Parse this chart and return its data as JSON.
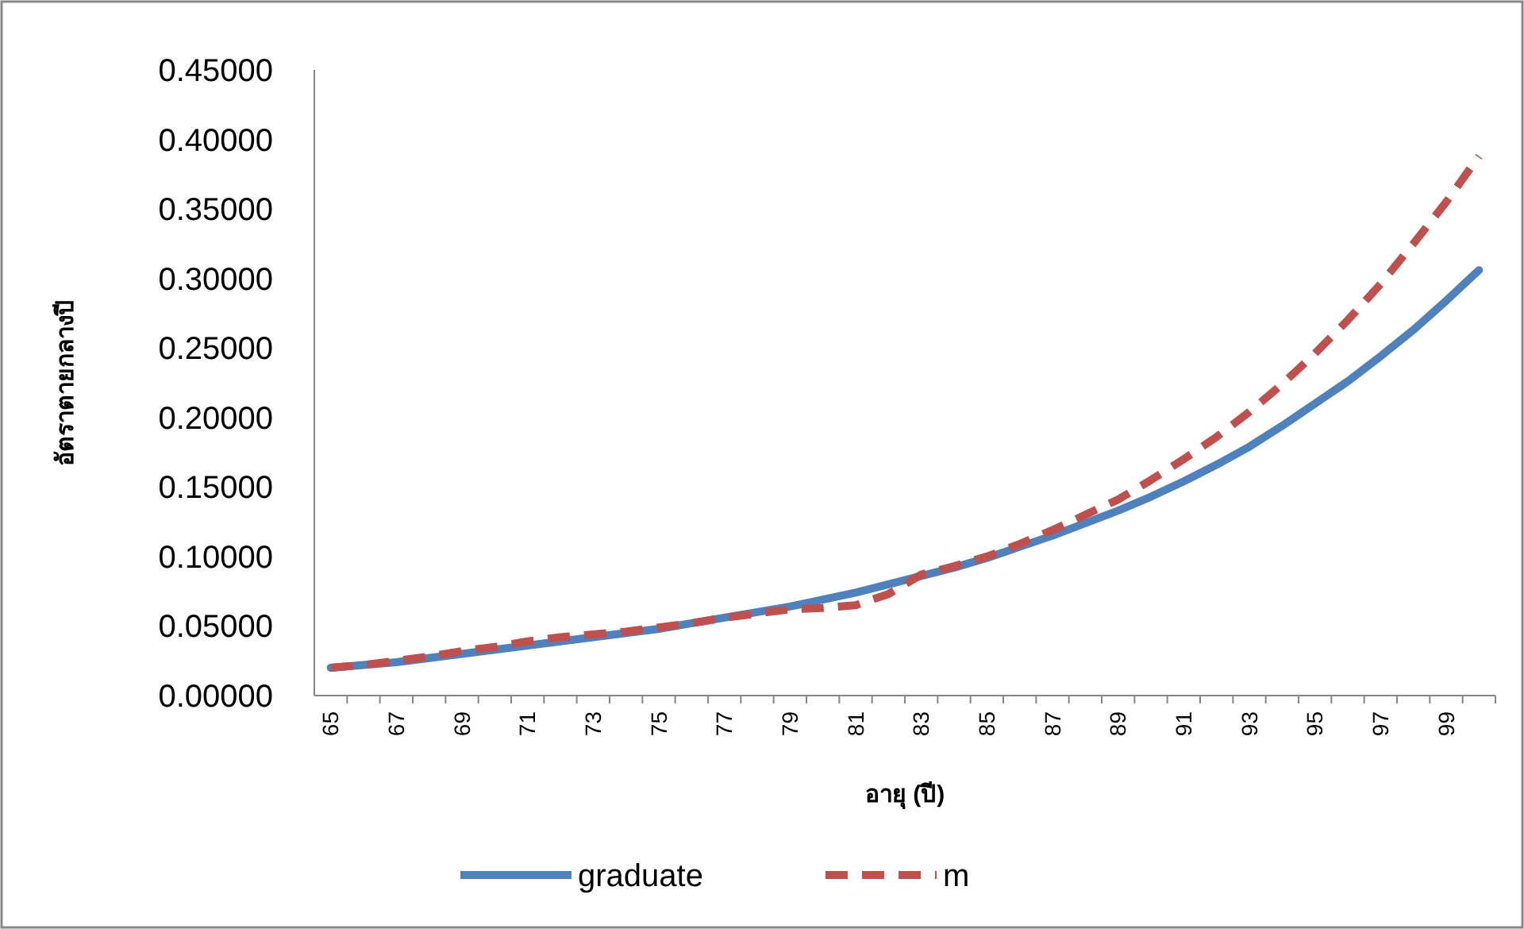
{
  "chart_data": {
    "type": "line",
    "xlabel": "อายุ (ปี)",
    "ylabel": "อัตราตายกลางปี",
    "categories": [
      "65",
      null,
      "67",
      null,
      "69",
      null,
      "71",
      null,
      "73",
      null,
      "75",
      null,
      "77",
      null,
      "79",
      null,
      "81",
      null,
      "83",
      null,
      "85",
      null,
      "87",
      null,
      "89",
      null,
      "91",
      null,
      "93",
      null,
      "95",
      null,
      "97",
      null,
      "99",
      null
    ],
    "series": [
      {
        "name": "graduate",
        "color": "#4f81bd",
        "line_style": "solid",
        "values": [
          0.02,
          0.022,
          0.024,
          0.027,
          0.03,
          0.033,
          0.036,
          0.039,
          0.042,
          0.045,
          0.048,
          0.052,
          0.056,
          0.06,
          0.064,
          0.069,
          0.074,
          0.08,
          0.086,
          0.092,
          0.099,
          0.107,
          0.115,
          0.124,
          0.133,
          0.143,
          0.154,
          0.166,
          0.179,
          0.194,
          0.21,
          0.226,
          0.244,
          0.263,
          0.284,
          0.306
        ]
      },
      {
        "name": "m",
        "color": "#c0504d",
        "line_style": "dashed",
        "values": [
          0.02,
          0.022,
          0.025,
          0.028,
          0.032,
          0.035,
          0.039,
          0.042,
          0.044,
          0.046,
          0.049,
          0.052,
          0.056,
          0.059,
          0.062,
          0.063,
          0.065,
          0.073,
          0.087,
          0.093,
          0.1,
          0.109,
          0.119,
          0.13,
          0.141,
          0.155,
          0.17,
          0.186,
          0.204,
          0.224,
          0.246,
          0.27,
          0.296,
          0.325,
          0.355,
          0.388
        ]
      }
    ],
    "ylim": [
      0,
      0.45
    ],
    "yticks": [
      {
        "value": 0,
        "label": "0.00000"
      },
      {
        "value": 0.05,
        "label": "0.05000"
      },
      {
        "value": 0.1,
        "label": "0.10000"
      },
      {
        "value": 0.15,
        "label": "0.15000"
      },
      {
        "value": 0.2,
        "label": "0.20000"
      },
      {
        "value": 0.25,
        "label": "0.25000"
      },
      {
        "value": 0.3,
        "label": "0.30000"
      },
      {
        "value": 0.35,
        "label": "0.35000"
      },
      {
        "value": 0.4,
        "label": "0.40000"
      },
      {
        "value": 0.45,
        "label": "0.45000"
      }
    ],
    "grid": false,
    "legend": "bottom",
    "marker": "none"
  }
}
